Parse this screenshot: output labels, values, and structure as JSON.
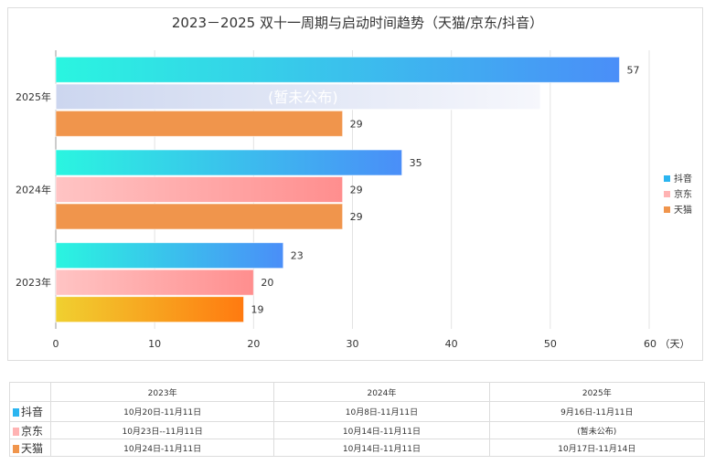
{
  "chart_data": {
    "type": "bar",
    "orientation": "horizontal",
    "title": "2023－2025 双十一周期与启动时间趋势（天猫/京东/抖音）",
    "categories": [
      "2025年",
      "2024年",
      "2023年"
    ],
    "series": [
      {
        "name": "抖音",
        "values": [
          57,
          35,
          23
        ],
        "color": "#4a8ef8"
      },
      {
        "name": "京东",
        "values": [
          null,
          29,
          20
        ],
        "color": "#ff9a9a"
      },
      {
        "name": "天猫",
        "values": [
          29,
          29,
          19
        ],
        "color": "#f0954c"
      }
    ],
    "placeholder_label": "(暂未公布)",
    "xlim": [
      0,
      60
    ],
    "xticks": [
      0,
      10,
      20,
      30,
      40,
      50,
      60
    ],
    "xunit": "（天）",
    "grid": true,
    "legend": "right"
  },
  "table": {
    "headers": [
      "2023年",
      "2024年",
      "2025年"
    ],
    "rows": [
      {
        "label": "抖音",
        "color": "#2bb5f0",
        "cells": [
          "10月20日-11月11日",
          "10月8日-11月11日",
          "9月16日-11月11日"
        ]
      },
      {
        "label": "京东",
        "color": "#ffb3b3",
        "cells": [
          "10月23日--11月11日",
          "10月14日-11月11日",
          "(暂未公布)"
        ]
      },
      {
        "label": "天猫",
        "color": "#f0954c",
        "cells": [
          "10月24日-11月11日",
          "10月14日-11月11日",
          "10月17日-11月14日"
        ]
      }
    ]
  }
}
